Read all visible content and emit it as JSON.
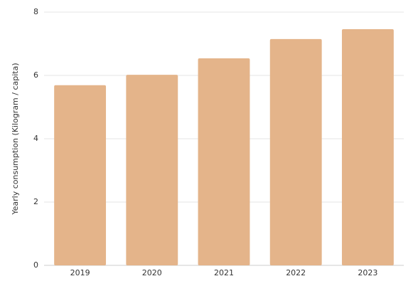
{
  "chart_data": {
    "type": "bar",
    "y_label": "Yearly consumption (Kilogram / capita)",
    "categories": [
      "2019",
      "2020",
      "2021",
      "2022",
      "2023"
    ],
    "values": [
      5.69,
      6.02,
      6.54,
      7.15,
      7.46
    ],
    "color": "#e4b48a",
    "ylim": [
      0,
      8
    ],
    "yticks": [
      0,
      2,
      4,
      6,
      8
    ],
    "grid": true
  }
}
